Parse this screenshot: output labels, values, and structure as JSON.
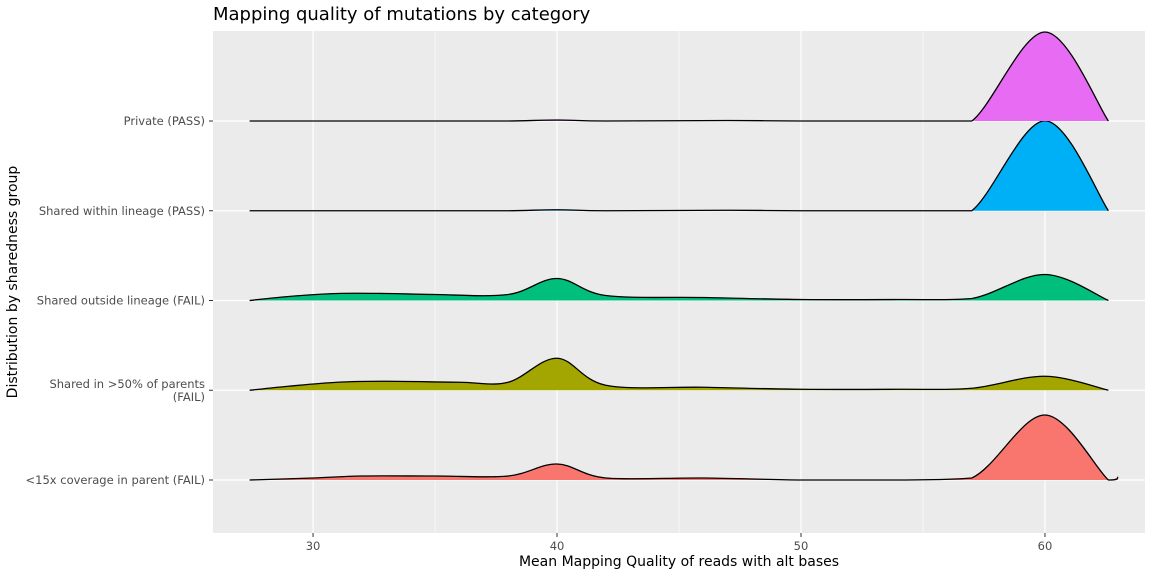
{
  "chart_data": {
    "type": "ridgeline",
    "title": "Mapping quality of mutations by category",
    "xlabel": "Mean Mapping Quality of reads with alt bases",
    "ylabel": "Distribution by sharedness group",
    "xlim": [
      25.9,
      64.1
    ],
    "xticks": [
      30,
      40,
      50,
      60
    ],
    "grid": true,
    "legend": "none",
    "groups": [
      {
        "label_lines": [
          "<15x coverage in parent (FAIL)"
        ],
        "color": "#F8766D",
        "curve": [
          [
            27.4,
            0
          ],
          [
            30,
            0.02
          ],
          [
            32,
            0.04
          ],
          [
            35,
            0.04
          ],
          [
            38,
            0.04
          ],
          [
            40,
            0.16
          ],
          [
            42,
            0.02
          ],
          [
            46,
            0.02
          ],
          [
            50,
            0
          ],
          [
            54,
            0
          ],
          [
            57,
            0.02
          ],
          [
            60,
            0.65
          ],
          [
            63,
            0.03
          ],
          [
            62.6,
            0
          ]
        ]
      },
      {
        "label_lines": [
          "Shared in >50% of parents",
          "(FAIL)"
        ],
        "color": "#A3A500",
        "curve": [
          [
            27.4,
            0
          ],
          [
            29,
            0.04
          ],
          [
            31,
            0.08
          ],
          [
            33,
            0.09
          ],
          [
            36,
            0.08
          ],
          [
            38,
            0.08
          ],
          [
            40,
            0.32
          ],
          [
            42,
            0.05
          ],
          [
            46,
            0.03
          ],
          [
            50,
            0.01
          ],
          [
            54,
            0.01
          ],
          [
            57,
            0.02
          ],
          [
            60,
            0.14
          ],
          [
            62.6,
            0
          ]
        ]
      },
      {
        "label_lines": [
          "Shared outside lineage (FAIL)"
        ],
        "color": "#00BF7D",
        "curve": [
          [
            27.4,
            0
          ],
          [
            29,
            0.04
          ],
          [
            31,
            0.07
          ],
          [
            33,
            0.07
          ],
          [
            35,
            0.06
          ],
          [
            38,
            0.06
          ],
          [
            40,
            0.22
          ],
          [
            42,
            0.05
          ],
          [
            46,
            0.03
          ],
          [
            50,
            0.01
          ],
          [
            54,
            0.01
          ],
          [
            57,
            0.02
          ],
          [
            60,
            0.26
          ],
          [
            62.6,
            0
          ]
        ]
      },
      {
        "label_lines": [
          "Shared within lineage (PASS)"
        ],
        "color": "#00B0F6",
        "curve": [
          [
            27.4,
            0
          ],
          [
            30,
            0
          ],
          [
            35,
            0
          ],
          [
            38,
            0
          ],
          [
            40,
            0.01
          ],
          [
            42,
            0
          ],
          [
            47,
            0.005
          ],
          [
            50,
            0
          ],
          [
            55,
            0
          ],
          [
            57,
            0
          ],
          [
            60,
            0.9
          ],
          [
            62.6,
            0
          ]
        ]
      },
      {
        "label_lines": [
          "Private (PASS)"
        ],
        "color": "#E76BF3",
        "curve": [
          [
            27.4,
            0
          ],
          [
            30,
            0
          ],
          [
            35,
            0
          ],
          [
            38,
            0
          ],
          [
            40,
            0.01
          ],
          [
            42,
            0
          ],
          [
            47,
            0.005
          ],
          [
            50,
            0
          ],
          [
            55,
            0
          ],
          [
            57,
            0
          ],
          [
            60,
            0.89
          ],
          [
            62.6,
            0
          ]
        ]
      }
    ]
  }
}
